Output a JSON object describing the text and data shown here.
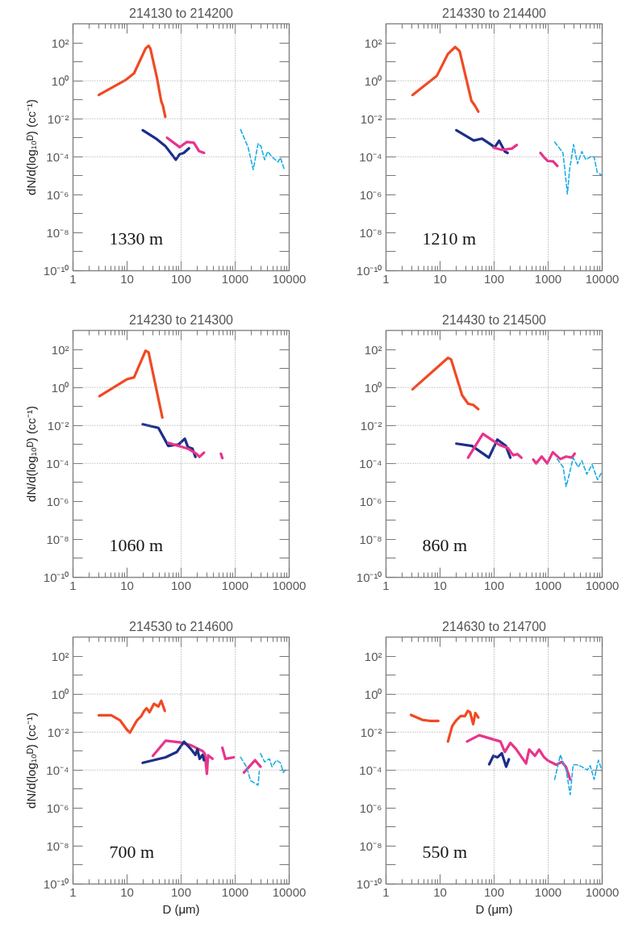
{
  "chart_data": [
    {
      "type": "line",
      "title": "214130 to 214200",
      "ylabel": "dN/d(log₁₀ᴰ) (cc⁻¹)",
      "annotations": [
        "1330 m"
      ],
      "log": "xy",
      "grid": false,
      "xlim": [
        1,
        10000
      ],
      "ylim": [
        1e-10,
        1000
      ],
      "xticks": [
        1,
        10,
        100,
        1000,
        10000
      ],
      "yticks": [
        {
          "value": 1e-10,
          "label": "10⁻¹⁰"
        },
        {
          "value": 1e-09,
          "label": null
        },
        {
          "value": 1e-08,
          "label": "10⁻⁸"
        },
        {
          "value": 1e-07,
          "label": null
        },
        {
          "value": 1e-06,
          "label": "10⁻⁶"
        },
        {
          "value": 1e-05,
          "label": null
        },
        {
          "value": 0.0001,
          "label": "10⁻⁴"
        },
        {
          "value": 0.001,
          "label": null
        },
        {
          "value": 0.01,
          "label": "10⁻²"
        },
        {
          "value": 0.1,
          "label": null
        },
        {
          "value": 1,
          "label": "10⁰"
        },
        {
          "value": 10,
          "label": null
        },
        {
          "value": 100,
          "label": "10²"
        }
      ],
      "ref_lines": [
        {
          "axis": "y",
          "value": 1,
          "line_style": "dotted"
        },
        {
          "axis": "y",
          "value": 0.01,
          "line_style": "dotted"
        },
        {
          "axis": "y",
          "value": 0.0001,
          "line_style": "dotted"
        },
        {
          "axis": "x",
          "value": 100,
          "line_style": "dotted"
        },
        {
          "axis": "x",
          "value": 1000,
          "line_style": "dotted"
        }
      ],
      "series": [
        {
          "color": "#f04a23",
          "x": [
            3,
            9.4,
            13.5,
            22,
            25,
            27,
            36,
            43,
            46,
            51
          ],
          "values": [
            0.18,
            1.1,
            2.5,
            50,
            70,
            50,
            1.3,
            0.08,
            0.05,
            0.0125
          ]
        },
        {
          "color": "#1c2e8a",
          "x": [
            19.5,
            35.5,
            51,
            80,
            94,
            112,
            140
          ],
          "values": [
            0.0025,
            0.00085,
            0.00037,
            7e-05,
            0.000135,
            0.00016,
            0.00028
          ]
        },
        {
          "color": "#e8348c",
          "x": [
            55,
            94,
            127,
            172,
            214,
            266
          ],
          "values": [
            0.001,
            0.00032,
            0.0006,
            0.00055,
            0.0002,
            0.00016
          ]
        },
        {
          "color": "#1aaee6",
          "line_style": "dashed",
          "x": [
            1260,
            1740,
            2160,
            2660,
            3000,
            3500,
            4000,
            4800,
            6200,
            6900,
            8100
          ],
          "values": [
            0.0027,
            0.00031,
            2.1e-05,
            0.0005,
            0.00036,
            7e-05,
            0.00019,
            0.0001,
            5.3e-05,
            9e-05,
            2.1e-05
          ]
        }
      ]
    },
    {
      "type": "line",
      "title": "214330 to 214400",
      "annotations": [
        "1210 m"
      ],
      "log": "xy",
      "grid": false,
      "xlim": [
        1,
        10000
      ],
      "ylim": [
        1e-10,
        1000
      ],
      "xticks": [
        1,
        10,
        100,
        1000,
        10000
      ],
      "yticks": [
        {
          "value": 1e-10,
          "label": "10⁻¹⁰"
        },
        {
          "value": 1e-09,
          "label": null
        },
        {
          "value": 1e-08,
          "label": "10⁻⁸"
        },
        {
          "value": 1e-07,
          "label": null
        },
        {
          "value": 1e-06,
          "label": "10⁻⁶"
        },
        {
          "value": 1e-05,
          "label": null
        },
        {
          "value": 0.0001,
          "label": "10⁻⁴"
        },
        {
          "value": 0.001,
          "label": null
        },
        {
          "value": 0.01,
          "label": "10⁻²"
        },
        {
          "value": 0.1,
          "label": null
        },
        {
          "value": 1,
          "label": "10⁰"
        },
        {
          "value": 10,
          "label": null
        },
        {
          "value": 100,
          "label": "10²"
        }
      ],
      "ref_lines": [
        {
          "axis": "y",
          "value": 1,
          "line_style": "dotted"
        },
        {
          "axis": "y",
          "value": 0.01,
          "line_style": "dotted"
        },
        {
          "axis": "y",
          "value": 0.0001,
          "line_style": "dotted"
        },
        {
          "axis": "x",
          "value": 100,
          "line_style": "dotted"
        },
        {
          "axis": "x",
          "value": 1000,
          "line_style": "dotted"
        }
      ],
      "series": [
        {
          "color": "#f04a23",
          "x": [
            3.1,
            8.7,
            14,
            19,
            23,
            38,
            44,
            51
          ],
          "values": [
            0.18,
            1.8,
            26,
            60,
            37,
            0.09,
            0.05,
            0.024
          ]
        },
        {
          "color": "#1c2e8a",
          "x": [
            20,
            42,
            60,
            103,
            124,
            158,
            178
          ],
          "values": [
            0.0025,
            0.00072,
            0.0009,
            0.00032,
            0.0007,
            0.00019,
            0.00016
          ]
        },
        {
          "color": "#e8348c",
          "x": [
            98,
            140,
            213,
            263,
            500,
            720,
            860,
            980,
            1230,
            1480
          ],
          "values": [
            0.0003,
            0.00023,
            0.00027,
            0.00042,
            null,
            0.00016,
            8.7e-05,
            6e-05,
            5.8e-05,
            3.3e-05
          ]
        },
        {
          "color": "#1aaee6",
          "line_style": "dashed",
          "x": [
            1320,
            1880,
            2000,
            2140,
            2270,
            2500,
            2950,
            3500,
            4200,
            5000,
            6400,
            7100,
            8100,
            9700
          ],
          "values": [
            0.0006,
            0.00016,
            3.3e-05,
            5.6e-06,
            1.1e-06,
            2.2e-05,
            0.00044,
            4.3e-05,
            0.00019,
            7e-05,
            0.00011,
            9.4e-05,
            1.5e-05,
            1.1e-05
          ]
        }
      ]
    },
    {
      "type": "line",
      "title": "214230 to 214300",
      "ylabel": "dN/d(log₁₀ᴰ) (cc⁻¹)",
      "annotations": [
        "1060 m"
      ],
      "log": "xy",
      "grid": false,
      "xlim": [
        1,
        10000
      ],
      "ylim": [
        1e-10,
        1000
      ],
      "xticks": [
        1,
        10,
        100,
        1000,
        10000
      ],
      "yticks": [
        {
          "value": 1e-10,
          "label": "10⁻¹⁰"
        },
        {
          "value": 1e-09,
          "label": null
        },
        {
          "value": 1e-08,
          "label": "10⁻⁸"
        },
        {
          "value": 1e-07,
          "label": null
        },
        {
          "value": 1e-06,
          "label": "10⁻⁶"
        },
        {
          "value": 1e-05,
          "label": null
        },
        {
          "value": 0.0001,
          "label": "10⁻⁴"
        },
        {
          "value": 0.001,
          "label": null
        },
        {
          "value": 0.01,
          "label": "10⁻²"
        },
        {
          "value": 0.1,
          "label": null
        },
        {
          "value": 1,
          "label": "10⁰"
        },
        {
          "value": 10,
          "label": null
        },
        {
          "value": 100,
          "label": "10²"
        }
      ],
      "ref_lines": [
        {
          "axis": "y",
          "value": 1,
          "line_style": "dotted"
        },
        {
          "axis": "y",
          "value": 0.01,
          "line_style": "dotted"
        },
        {
          "axis": "y",
          "value": 0.0001,
          "line_style": "dotted"
        },
        {
          "axis": "x",
          "value": 100,
          "line_style": "dotted"
        },
        {
          "axis": "x",
          "value": 1000,
          "line_style": "dotted"
        }
      ],
      "series": [
        {
          "color": "#f04a23",
          "x": [
            3.1,
            10,
            13.5,
            22,
            25,
            45
          ],
          "values": [
            0.35,
            2.7,
            3.4,
            85,
            70,
            0.026
          ]
        },
        {
          "color": "#1c2e8a",
          "x": [
            19.5,
            38,
            58,
            90,
            117,
            134,
            162,
            184
          ],
          "values": [
            0.0115,
            0.0074,
            0.00083,
            0.001,
            0.002,
            0.00072,
            0.0006,
            0.00022
          ]
        },
        {
          "color": "#e8348c",
          "x": [
            58,
            134,
            194,
            219,
            265,
            400,
            545,
            580
          ],
          "values": [
            0.0012,
            0.0006,
            0.00031,
            0.00022,
            0.00037,
            null,
            0.00032,
            0.00019
          ]
        }
      ]
    },
    {
      "type": "line",
      "title": "214430 to 214500",
      "annotations": [
        "860 m"
      ],
      "log": "xy",
      "grid": false,
      "xlim": [
        1,
        10000
      ],
      "ylim": [
        1e-10,
        1000
      ],
      "xticks": [
        1,
        10,
        100,
        1000,
        10000
      ],
      "yticks": [
        {
          "value": 1e-10,
          "label": "10⁻¹⁰"
        },
        {
          "value": 1e-09,
          "label": null
        },
        {
          "value": 1e-08,
          "label": "10⁻⁸"
        },
        {
          "value": 1e-07,
          "label": null
        },
        {
          "value": 1e-06,
          "label": "10⁻⁶"
        },
        {
          "value": 1e-05,
          "label": null
        },
        {
          "value": 0.0001,
          "label": "10⁻⁴"
        },
        {
          "value": 0.001,
          "label": null
        },
        {
          "value": 0.01,
          "label": "10⁻²"
        },
        {
          "value": 0.1,
          "label": null
        },
        {
          "value": 1,
          "label": "10⁰"
        },
        {
          "value": 10,
          "label": null
        },
        {
          "value": 100,
          "label": "10²"
        }
      ],
      "ref_lines": [
        {
          "axis": "y",
          "value": 1,
          "line_style": "dotted"
        },
        {
          "axis": "y",
          "value": 0.01,
          "line_style": "dotted"
        },
        {
          "axis": "y",
          "value": 0.0001,
          "line_style": "dotted"
        },
        {
          "axis": "x",
          "value": 100,
          "line_style": "dotted"
        },
        {
          "axis": "x",
          "value": 1000,
          "line_style": "dotted"
        }
      ],
      "series": [
        {
          "color": "#f04a23",
          "x": [
            3.1,
            14,
            16,
            25.6,
            33,
            41,
            51
          ],
          "values": [
            0.8,
            36,
            30,
            0.39,
            0.14,
            0.12,
            0.072
          ]
        },
        {
          "color": "#1c2e8a",
          "x": [
            20,
            39,
            80,
            115,
            165,
            200
          ],
          "values": [
            0.0011,
            0.00083,
            0.0002,
            0.0018,
            0.00083,
            0.0002
          ]
        },
        {
          "color": "#e8348c",
          "x": [
            33,
            62,
            98,
            127,
            180,
            225,
            270,
            320,
            420,
            530,
            600,
            760,
            960,
            1220,
            1680,
            2150,
            2750,
            3100
          ],
          "values": [
            0.0002,
            0.0036,
            0.0015,
            0.00093,
            0.00065,
            0.00027,
            0.00031,
            0.0002,
            null,
            0.00016,
            0.0001,
            0.00023,
            0.0001,
            0.00039,
            0.00017,
            0.00023,
            0.0002,
            0.00033
          ]
        },
        {
          "color": "#1aaee6",
          "line_style": "dashed",
          "x": [
            1470,
            1900,
            2150,
            2500,
            2900,
            3600,
            4200,
            5200,
            6500,
            8200,
            9700
          ],
          "values": [
            0.00017,
            6.3e-05,
            6e-06,
            3.2e-05,
            0.0002,
            6.3e-05,
            0.00014,
            2.7e-05,
            8.7e-05,
            1.4e-05,
            3.2e-05
          ]
        }
      ]
    },
    {
      "type": "line",
      "title": "214530 to 214600",
      "xlabel": "D (μm)",
      "ylabel": "dN/d(log₁₀ᴰ) (cc⁻¹)",
      "annotations": [
        "700 m"
      ],
      "log": "xy",
      "grid": false,
      "xlim": [
        1,
        10000
      ],
      "ylim": [
        1e-10,
        1000
      ],
      "xticks": [
        1,
        10,
        100,
        1000,
        10000
      ],
      "yticks": [
        {
          "value": 1e-10,
          "label": "10⁻¹⁰"
        },
        {
          "value": 1e-09,
          "label": null
        },
        {
          "value": 1e-08,
          "label": "10⁻⁸"
        },
        {
          "value": 1e-07,
          "label": null
        },
        {
          "value": 1e-06,
          "label": "10⁻⁶"
        },
        {
          "value": 1e-05,
          "label": null
        },
        {
          "value": 0.0001,
          "label": "10⁻⁴"
        },
        {
          "value": 0.001,
          "label": null
        },
        {
          "value": 0.01,
          "label": "10⁻²"
        },
        {
          "value": 0.1,
          "label": null
        },
        {
          "value": 1,
          "label": "10⁰"
        },
        {
          "value": 10,
          "label": null
        },
        {
          "value": 100,
          "label": "10²"
        }
      ],
      "ref_lines": [
        {
          "axis": "y",
          "value": 1,
          "line_style": "dotted"
        },
        {
          "axis": "y",
          "value": 0.01,
          "line_style": "dotted"
        },
        {
          "axis": "y",
          "value": 0.0001,
          "line_style": "dotted"
        },
        {
          "axis": "x",
          "value": 100,
          "line_style": "dotted"
        },
        {
          "axis": "x",
          "value": 1000,
          "line_style": "dotted"
        }
      ],
      "series": [
        {
          "color": "#f04a23",
          "x": [
            3,
            5.1,
            7.4,
            10,
            11.3,
            15.3,
            18.4,
            20.7,
            23,
            26,
            31.5,
            38,
            43,
            50
          ],
          "values": [
            0.076,
            0.076,
            0.042,
            0.013,
            0.0093,
            0.042,
            0.07,
            0.13,
            0.18,
            0.11,
            0.31,
            0.22,
            0.44,
            0.13
          ]
        },
        {
          "color": "#e8348c",
          "x": [
            30,
            51.5,
            94,
            153,
            250,
            275,
            300,
            315,
            380,
            480,
            580,
            660,
            940,
            1200,
            1450,
            2330,
            2950
          ],
          "values": [
            0.00056,
            0.0035,
            0.0029,
            0.002,
            0.001,
            0.00072,
            6.3e-05,
            0.0006,
            0.00039,
            null,
            0.0015,
            0.00039,
            0.00047,
            null,
            7.4e-05,
            0.00033,
            0.00015
          ]
        },
        {
          "color": "#1c2e8a",
          "x": [
            19.5,
            51.5,
            84,
            113,
            153,
            184,
            200,
            220,
            250,
            265
          ],
          "values": [
            0.00024,
            0.00047,
            0.00091,
            0.0031,
            0.00125,
            0.00063,
            0.00125,
            0.00039,
            0.00063,
            0.00033
          ]
        },
        {
          "color": "#1aaee6",
          "line_style": "dashed",
          "x": [
            1260,
            1620,
            1930,
            2650,
            2800,
            2870,
            2950,
            3500,
            4300,
            4800,
            5800,
            6900,
            7800,
            8800
          ],
          "values": [
            0.00047,
            0.00015,
            2.8e-05,
            1.6e-05,
            8.6e-05,
            null,
            0.00074,
            0.00027,
            0.00039,
            0.00015,
            0.00033,
            0.00024,
            7.4e-05,
            0.00012
          ]
        }
      ]
    },
    {
      "type": "line",
      "title": "214630 to 214700",
      "xlabel": "D (μm)",
      "annotations": [
        "550 m"
      ],
      "log": "xy",
      "grid": false,
      "xlim": [
        1,
        10000
      ],
      "ylim": [
        1e-10,
        1000
      ],
      "xticks": [
        1,
        10,
        100,
        1000,
        10000
      ],
      "yticks": [
        {
          "value": 1e-10,
          "label": "10⁻¹⁰"
        },
        {
          "value": 1e-09,
          "label": null
        },
        {
          "value": 1e-08,
          "label": "10⁻⁸"
        },
        {
          "value": 1e-07,
          "label": null
        },
        {
          "value": 1e-06,
          "label": "10⁻⁶"
        },
        {
          "value": 1e-05,
          "label": null
        },
        {
          "value": 0.0001,
          "label": "10⁻⁴"
        },
        {
          "value": 0.001,
          "label": null
        },
        {
          "value": 0.01,
          "label": "10⁻²"
        },
        {
          "value": 0.1,
          "label": null
        },
        {
          "value": 1,
          "label": "10⁰"
        },
        {
          "value": 10,
          "label": null
        },
        {
          "value": 100,
          "label": "10²"
        }
      ],
      "ref_lines": [
        {
          "axis": "y",
          "value": 1,
          "line_style": "dotted"
        },
        {
          "axis": "y",
          "value": 0.01,
          "line_style": "dotted"
        },
        {
          "axis": "y",
          "value": 0.0001,
          "line_style": "dotted"
        },
        {
          "axis": "x",
          "value": 100,
          "line_style": "dotted"
        },
        {
          "axis": "x",
          "value": 1000,
          "line_style": "dotted"
        }
      ],
      "series": [
        {
          "color": "#f04a23",
          "x": [
            2.9,
            4.7,
            6.4,
            9.3,
            11.5,
            14,
            16.8,
            20,
            24,
            29,
            32.5,
            36,
            41,
            45,
            51
          ],
          "values": [
            0.08,
            0.044,
            0.039,
            0.039,
            null,
            0.0032,
            0.021,
            0.042,
            0.07,
            0.07,
            0.13,
            0.11,
            0.026,
            0.1,
            0.058
          ]
        },
        {
          "color": "#e8348c",
          "x": [
            31.5,
            53,
            131,
            158,
            200,
            254,
            390,
            445,
            570,
            680,
            830,
            980,
            1410,
            1790,
            2150,
            2560
          ],
          "values": [
            0.0032,
            0.0068,
            0.0032,
            0.0009,
            0.0027,
            0.0013,
            0.00022,
            0.0012,
            0.00056,
            0.0012,
            0.0005,
            0.00032,
            0.00019,
            0.00027,
            0.00014,
            3.2e-05
          ]
        },
        {
          "color": "#1c2e8a",
          "x": [
            81,
            97,
            116,
            139,
            167,
            188
          ],
          "values": [
            0.0002,
            0.00056,
            0.00047,
            0.00076,
            0.00015,
            0.00037
          ]
        },
        {
          "color": "#1aaee6",
          "line_style": "dashed",
          "x": [
            1320,
            1680,
            2150,
            2560,
            2900,
            3460,
            4200,
            5300,
            6000,
            7100,
            8500,
            10000
          ],
          "values": [
            3.2e-05,
            0.00063,
            0.0001,
            5.1e-06,
            0.00019,
            0.00019,
            0.00015,
            0.0001,
            0.00017,
            3.2e-05,
            0.00033,
            8.7e-05
          ]
        }
      ]
    }
  ]
}
